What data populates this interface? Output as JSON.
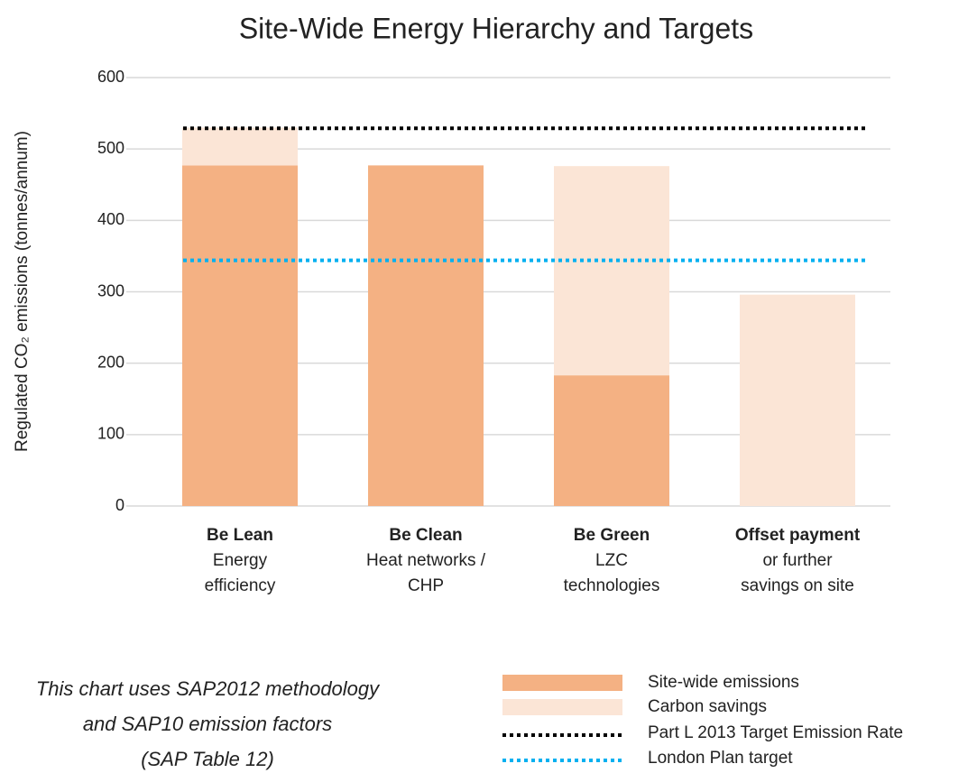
{
  "chart_data": {
    "type": "stacked_bar",
    "title": "Site-Wide Energy Hierarchy and Targets",
    "y_label": "Regulated CO₂ emissions (tonnes/annum)",
    "categories": [
      "Be Lean",
      "Be Clean",
      "Be Green",
      "Offset payment"
    ],
    "category_descriptions": [
      [
        "Energy",
        "efficiency"
      ],
      [
        "Heat networks /",
        "CHP"
      ],
      [
        "LZC",
        "technologies"
      ],
      [
        "or further",
        "savings on site"
      ]
    ],
    "series": [
      {
        "name": "Site-wide emissions",
        "color": "#f4b183",
        "values": [
          477,
          477,
          183,
          0
        ]
      },
      {
        "name": "Carbon savings",
        "color": "#fbe5d6",
        "values": [
          53,
          0,
          293,
          296
        ]
      }
    ],
    "reference_lines": [
      {
        "name": "Part L 2013 Target Emission Rate",
        "value": 529,
        "color": "#000000",
        "style": "dotted"
      },
      {
        "name": "London Plan target",
        "value": 344,
        "color": "#00b0f0",
        "style": "dotted"
      }
    ],
    "ylim": [
      0,
      600
    ],
    "yticks": [
      0,
      100,
      200,
      300,
      400,
      500,
      600
    ],
    "grid": true,
    "note": [
      "This chart uses SAP2012 methodology",
      "and SAP10 emission factors",
      "(SAP Table 12)"
    ]
  }
}
